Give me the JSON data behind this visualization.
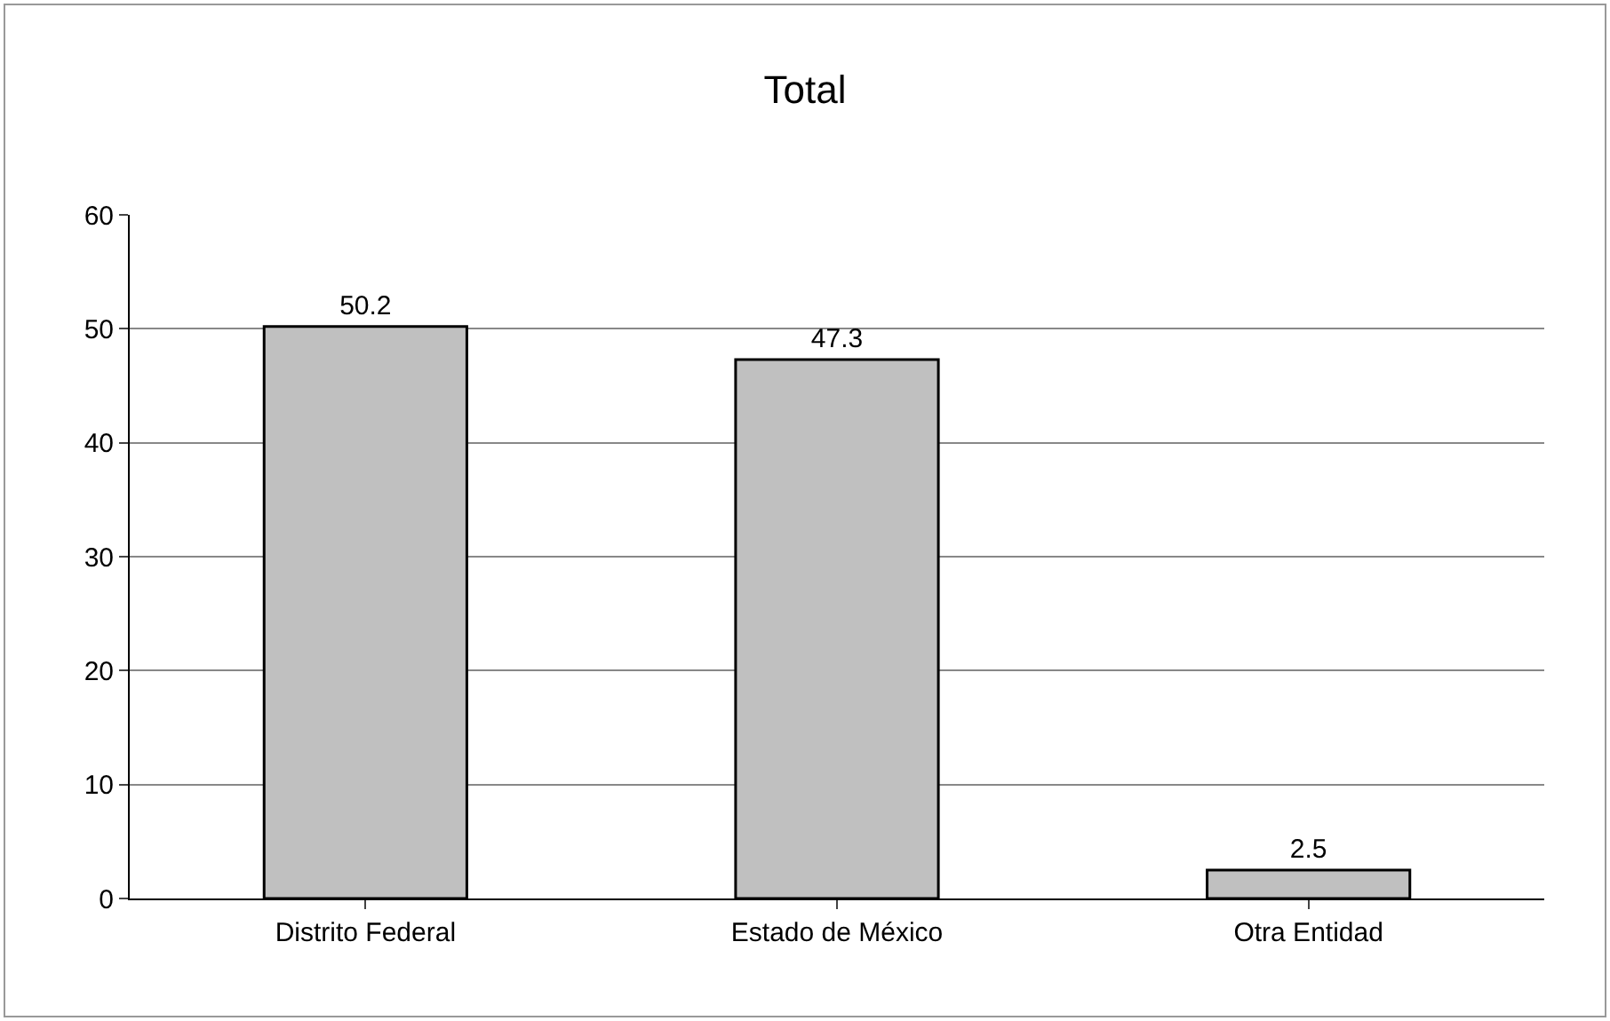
{
  "chart_data": {
    "type": "bar",
    "title": "Total",
    "categories": [
      "Distrito Federal",
      "Estado de México",
      "Otra Entidad"
    ],
    "values": [
      50.2,
      47.3,
      2.5
    ],
    "color": "#c0c0c0",
    "ylim": [
      0,
      60
    ],
    "yticks": [
      0,
      10,
      20,
      30,
      40,
      50,
      60
    ],
    "grid": "y",
    "data_labels": true
  }
}
